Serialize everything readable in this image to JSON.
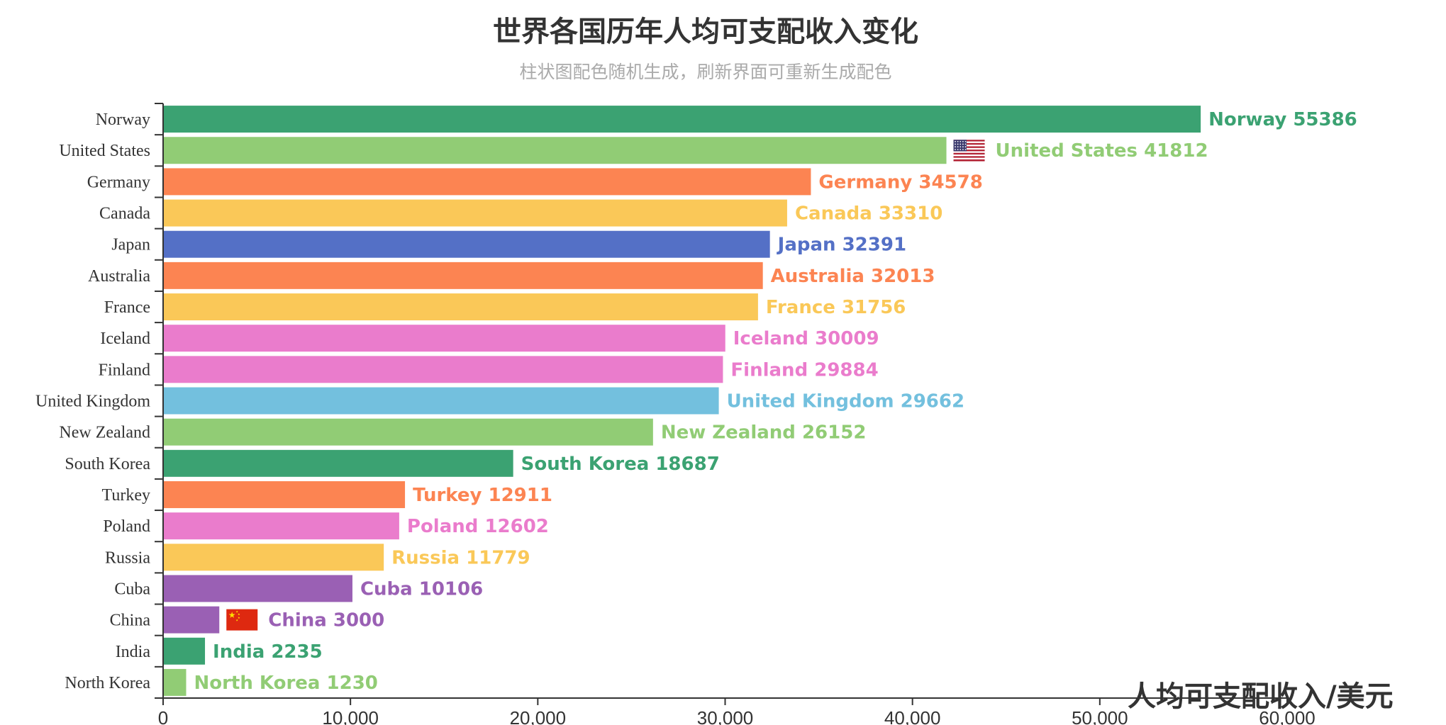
{
  "chart_data": {
    "type": "bar",
    "orientation": "horizontal",
    "title": "世界各国历年人均可支配收入变化",
    "subtitle": "柱状图配色随机生成，刷新界面可重新生成配色",
    "unit_label": "人均可支配收入/美元",
    "xlim": [
      0,
      60000
    ],
    "x_ticks": [
      "0",
      "10,000",
      "20,000",
      "30,000",
      "40,000",
      "50,000",
      "60,000"
    ],
    "categories": [
      "Norway",
      "United States",
      "Germany",
      "Canada",
      "Japan",
      "Australia",
      "France",
      "Iceland",
      "Finland",
      "United Kingdom",
      "New Zealand",
      "South Korea",
      "Turkey",
      "Poland",
      "Russia",
      "Cuba",
      "China",
      "India",
      "North Korea"
    ],
    "values": [
      55386,
      41812,
      34578,
      33310,
      32391,
      32013,
      31756,
      30009,
      29884,
      29662,
      26152,
      18687,
      12911,
      12602,
      11779,
      10106,
      3000,
      2235,
      1230
    ],
    "data_labels": [
      "Norway 55386",
      "United States 41812",
      "Germany 34578",
      "Canada 33310",
      "Japan 32391",
      "Australia 32013",
      "France 31756",
      "Iceland 30009",
      "Finland 29884",
      "United Kingdom 29662",
      "New Zealand 26152",
      "South Korea 18687",
      "Turkey 12911",
      "Poland 12602",
      "Russia 11779",
      "Cuba 10106",
      "China 3000",
      "India 2235",
      "North Korea 1230"
    ],
    "colors": [
      "#3ba272",
      "#91cc75",
      "#fc8452",
      "#fac858",
      "#5470c6",
      "#fc8452",
      "#fac858",
      "#ea7ccc",
      "#ea7ccc",
      "#73c0de",
      "#91cc75",
      "#3ba272",
      "#fc8452",
      "#ea7ccc",
      "#fac858",
      "#9a60b4",
      "#9a60b4",
      "#3ba272",
      "#91cc75"
    ],
    "flags": {
      "United States": "us-flag-icon",
      "China": "china-flag-icon"
    },
    "grid": false,
    "legend": "none"
  }
}
